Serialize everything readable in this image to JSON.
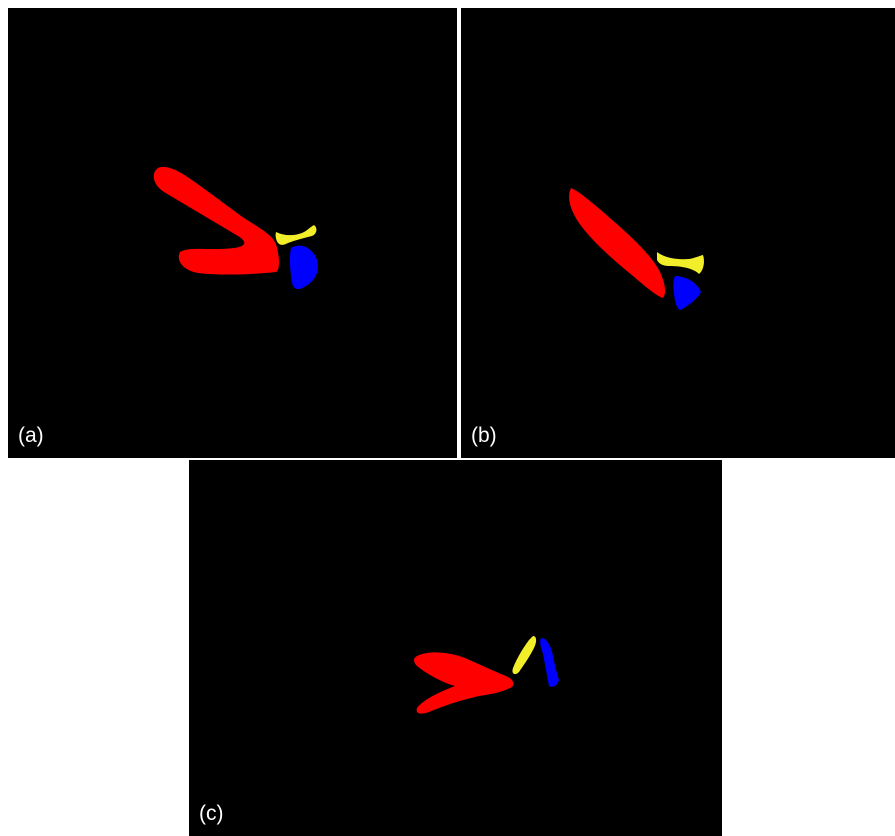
{
  "panels": [
    {
      "label": "(a)"
    },
    {
      "label": "(b)"
    },
    {
      "label": "(c)"
    }
  ],
  "colors": {
    "background": "#000000",
    "region_1": "#ff0000",
    "region_2": "#f2ef2a",
    "region_3": "#0000ff"
  }
}
